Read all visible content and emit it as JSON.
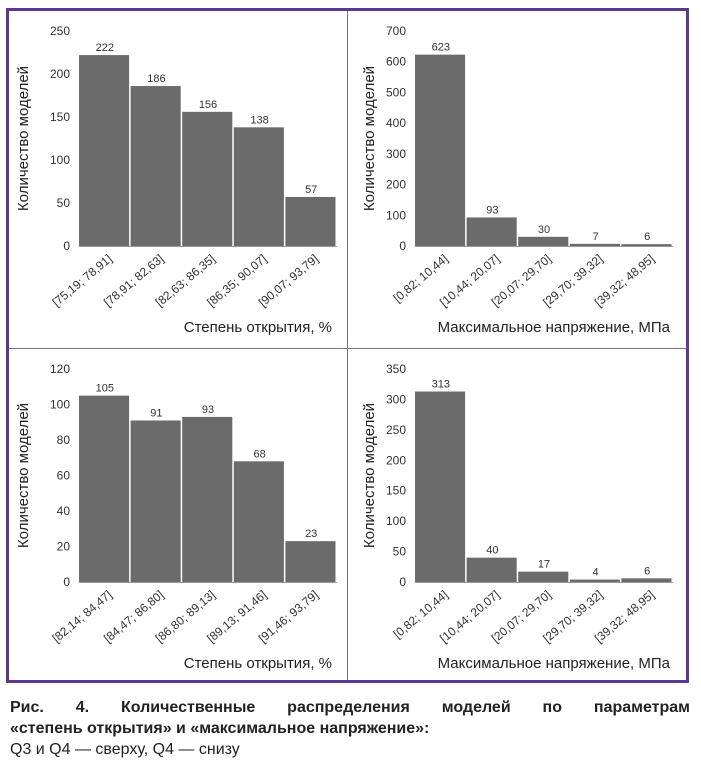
{
  "figure": {
    "caption_line1": "Рис. 4. Количественные распределения моделей по параметрам",
    "caption_line2": "«степень открытия» и «максимальное напряжение»:",
    "caption_line3": "Q3 и Q4 — сверху, Q4 — снизу",
    "frame_color": "#5b3a8c",
    "bar_color": "#6b6b6b"
  },
  "chart_data": [
    {
      "type": "bar",
      "categories": [
        "[75,19; 78,91]",
        "[78,91; 82,63]",
        "[82,63; 86,35]",
        "[86,35; 90,07]",
        "[90,07; 93,79]"
      ],
      "values": [
        222,
        186,
        156,
        138,
        57
      ],
      "ylim": [
        0,
        250
      ],
      "yticks": [
        0,
        50,
        100,
        150,
        200,
        250
      ],
      "xlabel": "Степень открытия, %",
      "ylabel": "Количество моделей"
    },
    {
      "type": "bar",
      "categories": [
        "[0,82; 10,44]",
        "[10,44; 20,07]",
        "[20,07; 29,70]",
        "[29,70; 39,32]",
        "[39,32; 48,95]"
      ],
      "values": [
        623,
        93,
        30,
        7,
        6
      ],
      "ylim": [
        0,
        700
      ],
      "yticks": [
        0,
        100,
        200,
        300,
        400,
        500,
        600,
        700
      ],
      "xlabel": "Максимальное напряжение, МПа",
      "ylabel": "Количество моделей"
    },
    {
      "type": "bar",
      "categories": [
        "[82,14; 84,47]",
        "[84,47; 86,80]",
        "[86,80; 89,13]",
        "[89,13; 91,46]",
        "[91,46; 93,79]"
      ],
      "values": [
        105,
        91,
        93,
        68,
        23
      ],
      "ylim": [
        0,
        120
      ],
      "yticks": [
        0,
        20,
        40,
        60,
        80,
        100,
        120
      ],
      "xlabel": "Степень открытия, %",
      "ylabel": "Количество моделей"
    },
    {
      "type": "bar",
      "categories": [
        "[0,82; 10,44]",
        "[10,44; 20,07]",
        "[20,07; 29,70]",
        "[29,70; 39,32]",
        "[39,32; 48,95]"
      ],
      "values": [
        313,
        40,
        17,
        4,
        6
      ],
      "ylim": [
        0,
        350
      ],
      "yticks": [
        0,
        50,
        100,
        150,
        200,
        250,
        300,
        350
      ],
      "xlabel": "Максимальное напряжение, МПа",
      "ylabel": "Количество моделей"
    }
  ]
}
